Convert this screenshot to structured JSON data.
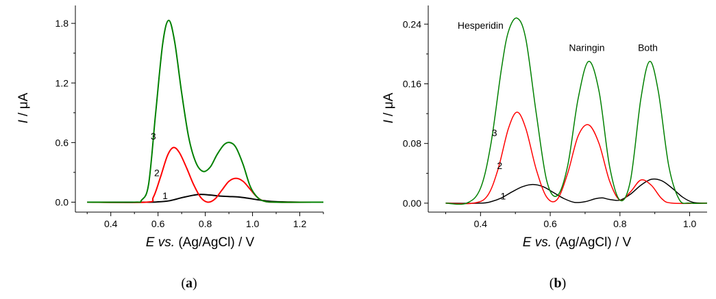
{
  "chart_data": [
    {
      "type": "line",
      "panel_label_open": "(",
      "panel_label_letter": "a",
      "panel_label_close": ")",
      "xlabel_italic": "E",
      "xlabel_vs": " vs.",
      "xlabel_rest": " (Ag/AgCl) / V",
      "ylabel_italic": "I",
      "ylabel_rest": " / μA",
      "xlim": [
        0.25,
        1.3
      ],
      "ylim": [
        -0.1,
        1.98
      ],
      "xticks": [
        0.4,
        0.6,
        0.8,
        1.0,
        1.2
      ],
      "xtick_labels": [
        "0.4",
        "0.6",
        "0.8",
        "1.0",
        "1.2"
      ],
      "yticks": [
        0.0,
        0.6,
        1.2,
        1.8
      ],
      "ytick_labels": [
        "0.0",
        "0.6",
        "1.2",
        "1.8"
      ],
      "series": [
        {
          "label": "1",
          "color": "#000000",
          "label_pos": [
            0.63,
            0.03
          ],
          "x": [
            0.3,
            0.55,
            0.6,
            0.65,
            0.7,
            0.75,
            0.78,
            0.82,
            0.86,
            0.9,
            0.94,
            0.98,
            1.02,
            1.06,
            1.1,
            1.15,
            1.2,
            1.3
          ],
          "y": [
            0.0,
            0.0,
            0.003,
            0.015,
            0.045,
            0.07,
            0.078,
            0.072,
            0.062,
            0.057,
            0.052,
            0.04,
            0.025,
            0.012,
            0.005,
            0.002,
            0.0,
            0.0
          ]
        },
        {
          "label": "2",
          "color": "#ff0000",
          "label_pos": [
            0.595,
            0.26
          ],
          "x": [
            0.3,
            0.55,
            0.58,
            0.61,
            0.64,
            0.665,
            0.69,
            0.72,
            0.75,
            0.78,
            0.81,
            0.84,
            0.87,
            0.9,
            0.93,
            0.96,
            0.99,
            1.02,
            1.05,
            1.1,
            1.3
          ],
          "y": [
            0.0,
            0.0,
            0.05,
            0.25,
            0.47,
            0.55,
            0.5,
            0.35,
            0.18,
            0.05,
            0.0,
            0.03,
            0.12,
            0.21,
            0.24,
            0.21,
            0.13,
            0.05,
            0.01,
            0.0,
            0.0
          ]
        },
        {
          "label": "3",
          "color": "#008000",
          "label_pos": [
            0.58,
            0.63
          ],
          "x": [
            0.3,
            0.5,
            0.53,
            0.56,
            0.59,
            0.62,
            0.645,
            0.67,
            0.7,
            0.73,
            0.76,
            0.79,
            0.82,
            0.85,
            0.88,
            0.905,
            0.93,
            0.96,
            0.99,
            1.02,
            1.05,
            1.1,
            1.3
          ],
          "y": [
            0.0,
            0.0,
            0.02,
            0.18,
            0.9,
            1.6,
            1.83,
            1.62,
            1.1,
            0.65,
            0.4,
            0.31,
            0.35,
            0.48,
            0.58,
            0.6,
            0.55,
            0.38,
            0.16,
            0.05,
            0.01,
            0.0,
            0.0
          ]
        }
      ]
    },
    {
      "type": "line",
      "panel_label_open": "(",
      "panel_label_letter": "b",
      "panel_label_close": ")",
      "xlabel_italic": "E",
      "xlabel_vs": " vs.",
      "xlabel_rest": " (Ag/AgCl) / V",
      "ylabel_italic": "I",
      "ylabel_rest": " / μA",
      "xlim": [
        0.25,
        1.05
      ],
      "ylim": [
        -0.012,
        0.265
      ],
      "xticks": [
        0.4,
        0.6,
        0.8,
        1.0
      ],
      "xtick_labels": [
        "0.4",
        "0.6",
        "0.8",
        "1.0"
      ],
      "yticks": [
        0.0,
        0.08,
        0.16,
        0.24
      ],
      "ytick_labels": [
        "0.00",
        "0.08",
        "0.16",
        "0.24"
      ],
      "annotations": [
        {
          "text": "Hesperidin",
          "x": 0.4,
          "y": 0.234
        },
        {
          "text": "Naringin",
          "x": 0.705,
          "y": 0.204
        },
        {
          "text": "Both",
          "x": 0.88,
          "y": 0.204
        }
      ],
      "series": [
        {
          "label": "1",
          "color": "#000000",
          "label_pos": [
            0.465,
            0.005
          ],
          "x": [
            0.3,
            0.4,
            0.43,
            0.46,
            0.49,
            0.52,
            0.55,
            0.58,
            0.61,
            0.64,
            0.67,
            0.7,
            0.73,
            0.75,
            0.77,
            0.8,
            0.83,
            0.86,
            0.89,
            0.92,
            0.95,
            0.98,
            1.01,
            1.05
          ],
          "y": [
            0.0,
            0.0,
            0.002,
            0.007,
            0.015,
            0.022,
            0.025,
            0.022,
            0.014,
            0.006,
            0.001,
            0.002,
            0.006,
            0.007,
            0.005,
            0.004,
            0.012,
            0.024,
            0.032,
            0.03,
            0.02,
            0.008,
            0.001,
            0.0
          ]
        },
        {
          "label": "2",
          "color": "#ff0000",
          "label_pos": [
            0.455,
            0.046
          ],
          "x": [
            0.3,
            0.38,
            0.42,
            0.45,
            0.48,
            0.505,
            0.53,
            0.56,
            0.59,
            0.62,
            0.65,
            0.68,
            0.71,
            0.74,
            0.77,
            0.8,
            0.83,
            0.86,
            0.89,
            0.92,
            0.95,
            1.05
          ],
          "y": [
            0.0,
            0.0,
            0.01,
            0.045,
            0.1,
            0.122,
            0.1,
            0.045,
            0.008,
            0.005,
            0.04,
            0.09,
            0.105,
            0.08,
            0.03,
            0.004,
            0.015,
            0.031,
            0.024,
            0.006,
            0.0,
            0.0
          ]
        },
        {
          "label": "3",
          "color": "#008000",
          "label_pos": [
            0.44,
            0.09
          ],
          "x": [
            0.3,
            0.36,
            0.4,
            0.43,
            0.46,
            0.48,
            0.505,
            0.53,
            0.56,
            0.59,
            0.62,
            0.65,
            0.68,
            0.71,
            0.74,
            0.77,
            0.8,
            0.83,
            0.86,
            0.885,
            0.91,
            0.94,
            0.97,
            1.0,
            1.05
          ],
          "y": [
            0.0,
            0.0,
            0.02,
            0.08,
            0.18,
            0.23,
            0.248,
            0.22,
            0.12,
            0.03,
            0.01,
            0.05,
            0.14,
            0.19,
            0.15,
            0.05,
            0.004,
            0.03,
            0.14,
            0.19,
            0.15,
            0.05,
            0.005,
            0.0,
            0.0
          ]
        }
      ]
    }
  ]
}
